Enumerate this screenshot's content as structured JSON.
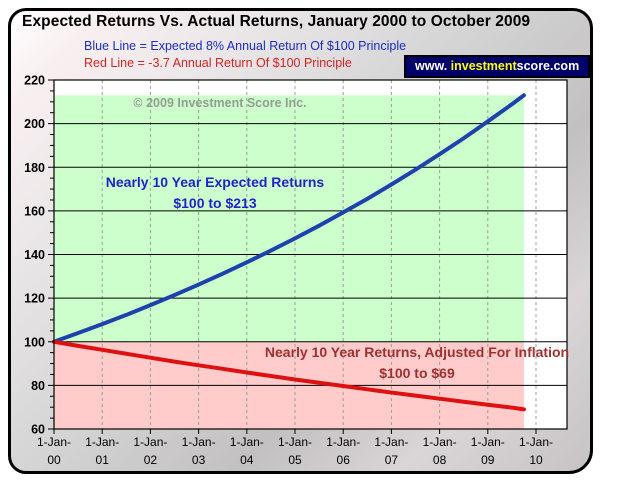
{
  "header": {
    "title": "Expected Returns Vs. Actual Returns, January 2000 to October 2009",
    "legend": [
      {
        "label": "Blue Line = Expected 8% Annual Return Of $100 Principle",
        "color": "#1b2cc8"
      },
      {
        "label": "Red Line = -3.7 Annual Return Of $100 Principle",
        "color": "#d42525"
      }
    ],
    "badge": {
      "bg": "#00006b",
      "segments": [
        {
          "text": "www. ",
          "color": "#ffffff"
        },
        {
          "text": "investment",
          "color": "#ffff00"
        },
        {
          "text": "score.com",
          "color": "#ffffff"
        }
      ]
    }
  },
  "watermark": {
    "text": "© 2009 Investment Score Inc.",
    "color": "#949c94"
  },
  "chart_data": {
    "type": "line",
    "title": "Expected Returns Vs. Actual Returns, January 2000 to October 2009",
    "ylim": [
      60,
      220
    ],
    "y_ticks": [
      220,
      200,
      180,
      160,
      140,
      120,
      100,
      80,
      60
    ],
    "y_minor_step": 5,
    "x_tick_prefix": "1-Jan-",
    "x_tick_years": [
      "00",
      "01",
      "02",
      "03",
      "04",
      "05",
      "06",
      "07",
      "08",
      "09",
      "10"
    ],
    "grid": {
      "horizontal": "solid-black-every-20",
      "vertical": "dashed-gray-every-year"
    },
    "series": [
      {
        "name": "expected-8pct-return-line",
        "legend": "Expected 8% Annual Return Of $100 Principle",
        "color": "#1d41ad",
        "width": 4,
        "x": [
          0,
          0.5,
          1,
          1.5,
          2,
          2.5,
          3,
          3.5,
          4,
          4.5,
          5,
          5.5,
          6,
          6.5,
          7,
          7.5,
          8,
          8.5,
          9,
          9.5,
          9.75
        ],
        "values": [
          100,
          104,
          108.1,
          112.3,
          116.8,
          121.4,
          126.2,
          131.2,
          136.4,
          141.8,
          147.4,
          153.2,
          159.3,
          165.5,
          172.1,
          178.9,
          186,
          193.3,
          201,
          208.9,
          213
        ]
      },
      {
        "name": "inflation-adjusted-return-line",
        "legend": "-3.7 Annual Return Of $100 Principle",
        "color": "#dd1111",
        "width": 4,
        "x": [
          0,
          0.5,
          1,
          1.5,
          2,
          2.5,
          3,
          3.5,
          4,
          4.5,
          5,
          5.5,
          6,
          6.5,
          7,
          7.5,
          8,
          8.5,
          9,
          9.5,
          9.75
        ],
        "values": [
          100,
          98.1,
          96.3,
          94.5,
          92.7,
          90.9,
          89.2,
          87.6,
          85.9,
          84.3,
          82.7,
          81.2,
          79.7,
          78.2,
          76.7,
          75.3,
          73.9,
          72.5,
          71.1,
          69.8,
          69
        ]
      }
    ],
    "regions": [
      {
        "name": "expected-returns-region",
        "color": "#ccffcc",
        "x": [
          0,
          9.75
        ],
        "y": [
          100,
          213
        ]
      },
      {
        "name": "inflation-loss-region",
        "color": "#ffcbcb",
        "x": [
          0,
          9.75
        ],
        "y": [
          60,
          100
        ]
      }
    ],
    "annotations": [
      {
        "name": "expected-returns-annotation",
        "color": "#2222cc",
        "lines": [
          "Nearly 10 Year Expected Returns",
          "$100 to $213"
        ]
      },
      {
        "name": "inflation-returns-annotation",
        "color": "#9e3030",
        "lines": [
          "Nearly 10 Year Returns, Adjusted For Inflation",
          "$100 to $69"
        ]
      }
    ]
  }
}
